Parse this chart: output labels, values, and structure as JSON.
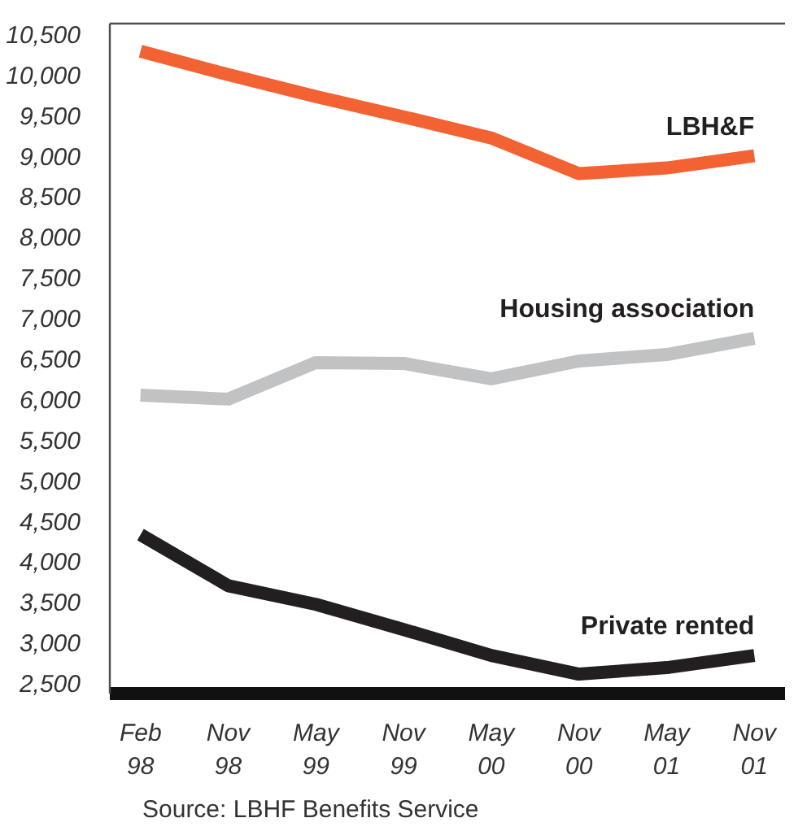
{
  "chart_data": {
    "type": "line",
    "categories": [
      "Feb 98",
      "Nov 98",
      "May 99",
      "Nov 99",
      "May 00",
      "Nov 00",
      "May 01",
      "Nov 01"
    ],
    "series": [
      {
        "name": "LBH&F",
        "color": "#f26232",
        "values": [
          10290,
          10000,
          9730,
          9480,
          9220,
          8780,
          8850,
          9000
        ]
      },
      {
        "name": "Housing association",
        "color": "#c1c2c4",
        "values": [
          6050,
          6000,
          6450,
          6440,
          6250,
          6470,
          6550,
          6750
        ]
      },
      {
        "name": "Private rented",
        "color": "#231f20",
        "values": [
          4330,
          3700,
          3470,
          3160,
          2840,
          2610,
          2690,
          2840
        ]
      }
    ],
    "ylim": [
      2370,
      10630
    ],
    "yticks": [
      {
        "value": 2500,
        "label": "2,500"
      },
      {
        "value": 3000,
        "label": "3,000"
      },
      {
        "value": 3500,
        "label": "3,500"
      },
      {
        "value": 4000,
        "label": "4,000"
      },
      {
        "value": 4500,
        "label": "4,500"
      },
      {
        "value": 5000,
        "label": "5,000"
      },
      {
        "value": 5500,
        "label": "5,500"
      },
      {
        "value": 6000,
        "label": "6,000"
      },
      {
        "value": 6500,
        "label": "6,500"
      },
      {
        "value": 7000,
        "label": "7,000"
      },
      {
        "value": 7500,
        "label": "7,500"
      },
      {
        "value": 8000,
        "label": "8,000"
      },
      {
        "value": 8500,
        "label": "8,500"
      },
      {
        "value": 9000,
        "label": "9,000"
      },
      {
        "value": 9500,
        "label": "9,500"
      },
      {
        "value": 10000,
        "label": "10,000"
      },
      {
        "value": 10500,
        "label": "10,500"
      }
    ],
    "annotations": [
      "Source: LBHF Benefits Service"
    ]
  }
}
